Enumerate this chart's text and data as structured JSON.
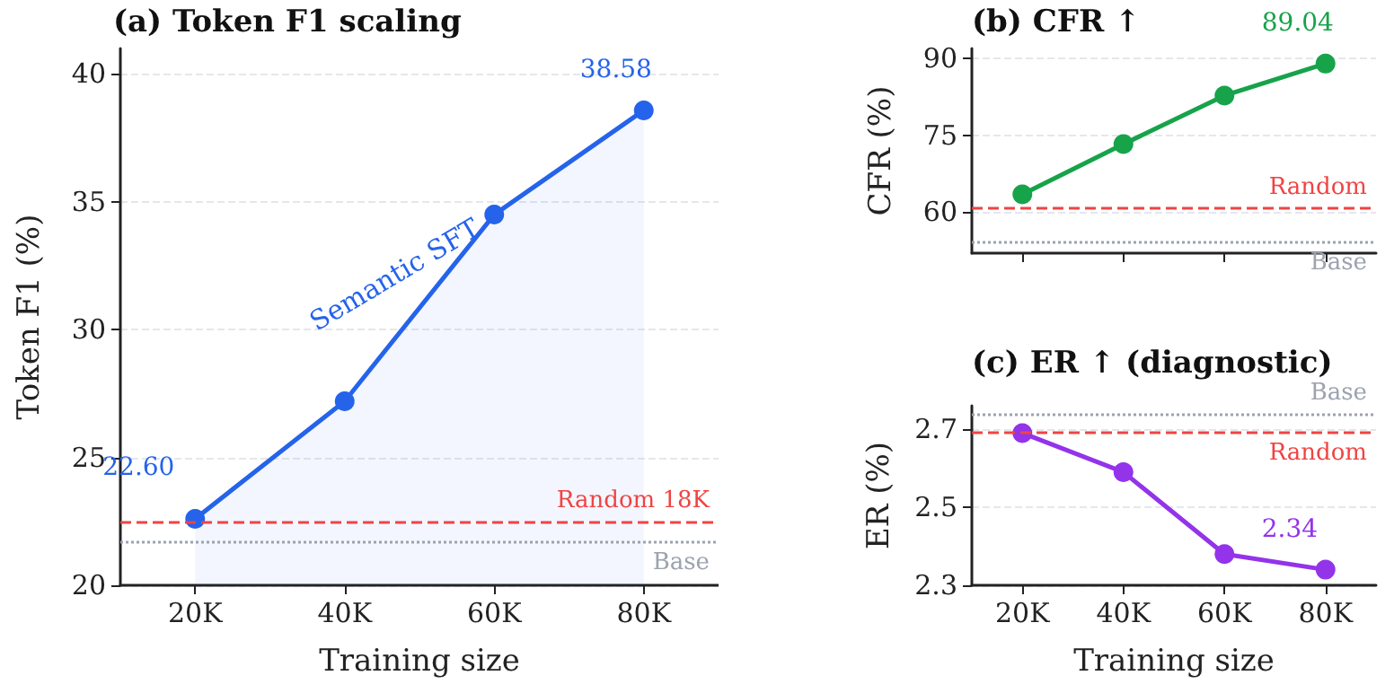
{
  "chart_data": [
    {
      "type": "area",
      "title": "(a) Token F1 scaling",
      "xlabel": "Training size",
      "ylabel": "Token F1 (%)",
      "categories": [
        "20K",
        "40K",
        "60K",
        "80K"
      ],
      "series": [
        {
          "name": "Semantic SFT",
          "color": "#2563eb",
          "values": [
            22.6,
            27.2,
            34.5,
            38.58
          ],
          "value_labels": [
            "22.60",
            null,
            null,
            "38.58"
          ]
        }
      ],
      "ylim": [
        20,
        41
      ],
      "yticks": [
        20,
        25,
        30,
        35,
        40
      ],
      "grid": "y",
      "marker": "circle",
      "ref_lines": [
        {
          "axis": "y",
          "value": 22.5,
          "label": "Random 18K",
          "color": "#ef4444",
          "line_style": "dashed"
        },
        {
          "axis": "y",
          "value": 21.7,
          "label": "Base",
          "color": "#9ca3af",
          "line_style": "dotted"
        }
      ]
    },
    {
      "type": "line",
      "title": "(b) CFR ↑",
      "ylabel": "CFR (%)",
      "categories": [
        null,
        null,
        null,
        null
      ],
      "series": [
        {
          "color": "#16a34a",
          "values": [
            63.5,
            73.3,
            82.8,
            89.04
          ],
          "value_labels": [
            null,
            null,
            null,
            "89.04"
          ]
        }
      ],
      "ylim": [
        52,
        92
      ],
      "yticks": [
        60,
        75,
        90
      ],
      "grid": "y",
      "marker": "circle",
      "tick_labels": "y",
      "ref_lines": [
        {
          "axis": "y",
          "value": 60.7,
          "label": "Random",
          "color": "#ef4444",
          "line_style": "dashed"
        },
        {
          "axis": "y",
          "value": 54.1,
          "label": "Base",
          "color": "#9ca3af",
          "line_style": "dotted"
        }
      ]
    },
    {
      "type": "line",
      "title": "(c) ER ↑ (diagnostic)",
      "xlabel": "Training size",
      "ylabel": "ER (%)",
      "categories": [
        "20K",
        "40K",
        "60K",
        "80K"
      ],
      "series": [
        {
          "color": "#9333ea",
          "values": [
            2.69,
            2.59,
            2.38,
            2.34
          ],
          "value_labels": [
            null,
            null,
            null,
            "2.34"
          ]
        }
      ],
      "ylim": [
        2.3,
        2.76
      ],
      "yticks": [
        2.3,
        2.5,
        2.7
      ],
      "grid": "y",
      "marker": "circle",
      "ref_lines": [
        {
          "axis": "y",
          "value": 2.74,
          "label": "Base",
          "color": "#9ca3af",
          "line_style": "dotted"
        },
        {
          "axis": "y",
          "value": 2.69,
          "label": "Random",
          "color": "#ef4444",
          "line_style": "dashed"
        }
      ]
    }
  ]
}
